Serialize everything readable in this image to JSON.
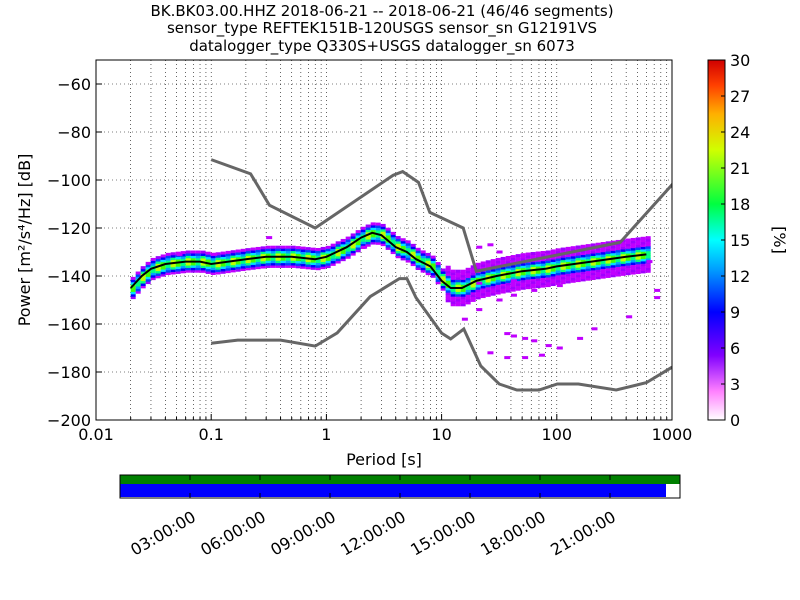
{
  "title": {
    "line1": "BK.BK03.00.HHZ   2018-06-21 -- 2018-06-21  (46/46 segments)",
    "line2": "sensor_type REFTEK151B-120USGS sensor_sn G12191VS",
    "line3": "datalogger_type Q330S+USGS datalogger_sn 6073"
  },
  "chart_data": {
    "type": "heatmap",
    "xlabel": "Period [s]",
    "ylabel": "Power [m²/s⁴/Hz] [dB]",
    "x_scale": "log",
    "xlim": [
      0.01,
      1000
    ],
    "ylim": [
      -200,
      -50
    ],
    "x_tick_labels": [
      "0.01",
      "0.1",
      "1",
      "10",
      "100",
      "1000"
    ],
    "x_tick_values": [
      0.01,
      0.1,
      1,
      10,
      100,
      1000
    ],
    "y_ticks": [
      -60,
      -80,
      -100,
      -120,
      -140,
      -160,
      -180,
      -200
    ],
    "y_tick_labels": [
      "−60",
      "−80",
      "−100",
      "−120",
      "−140",
      "−160",
      "−180",
      "−200"
    ],
    "colorbar": {
      "label": "[%]",
      "range": [
        0,
        30
      ],
      "ticks": [
        "0",
        "3",
        "6",
        "9",
        "12",
        "15",
        "18",
        "21",
        "24",
        "27",
        "30"
      ]
    },
    "nhnm": [
      [
        0.1,
        -91.5
      ],
      [
        0.22,
        -97.4
      ],
      [
        0.32,
        -110.5
      ],
      [
        0.8,
        -120
      ],
      [
        3.8,
        -98
      ],
      [
        4.6,
        -96.5
      ],
      [
        6.3,
        -101
      ],
      [
        7.9,
        -113.5
      ],
      [
        15.4,
        -120
      ],
      [
        20,
        -138
      ],
      [
        354.8,
        -126
      ],
      [
        10000,
        -48.5
      ]
    ],
    "nlnm": [
      [
        0.1,
        -168
      ],
      [
        0.17,
        -166.7
      ],
      [
        0.4,
        -166.7
      ],
      [
        0.8,
        -169.2
      ],
      [
        1.24,
        -163.7
      ],
      [
        2.4,
        -148.6
      ],
      [
        4.3,
        -141.1
      ],
      [
        5,
        -141.1
      ],
      [
        6,
        -149
      ],
      [
        10,
        -163.8
      ],
      [
        12,
        -166.2
      ],
      [
        15.6,
        -162.1
      ],
      [
        21.9,
        -177.5
      ],
      [
        31.6,
        -185
      ],
      [
        45,
        -187.5
      ],
      [
        70,
        -187.5
      ],
      [
        101,
        -185
      ],
      [
        154,
        -185
      ],
      [
        328,
        -187.5
      ],
      [
        600,
        -184.4
      ],
      [
        1000,
        -178
      ]
    ],
    "mode_curve": [
      [
        0.02,
        -145
      ],
      [
        0.025,
        -140
      ],
      [
        0.03,
        -137
      ],
      [
        0.04,
        -135
      ],
      [
        0.06,
        -134
      ],
      [
        0.08,
        -134
      ],
      [
        0.1,
        -135
      ],
      [
        0.2,
        -133
      ],
      [
        0.3,
        -132
      ],
      [
        0.5,
        -132
      ],
      [
        0.8,
        -133
      ],
      [
        1,
        -132
      ],
      [
        1.5,
        -128
      ],
      [
        2,
        -124
      ],
      [
        2.5,
        -122
      ],
      [
        3,
        -123
      ],
      [
        4,
        -128
      ],
      [
        5,
        -130
      ],
      [
        6,
        -133
      ],
      [
        8,
        -136
      ],
      [
        10,
        -142
      ],
      [
        12,
        -145
      ],
      [
        15,
        -145
      ],
      [
        20,
        -142
      ],
      [
        30,
        -140
      ],
      [
        50,
        -138
      ],
      [
        80,
        -137
      ],
      [
        100,
        -136
      ],
      [
        200,
        -134
      ],
      [
        400,
        -132
      ],
      [
        600,
        -131
      ]
    ],
    "percent_range_note_free": true,
    "time_axis": {
      "tick_labels": [
        "03:00:00",
        "06:00:00",
        "09:00:00",
        "12:00:00",
        "15:00:00",
        "18:00:00",
        "21:00:00"
      ],
      "data_coverage_fraction": 1.0,
      "used_coverage_fraction": 0.975,
      "coverage_color": "#008000",
      "used_color": "#0000ff"
    }
  }
}
